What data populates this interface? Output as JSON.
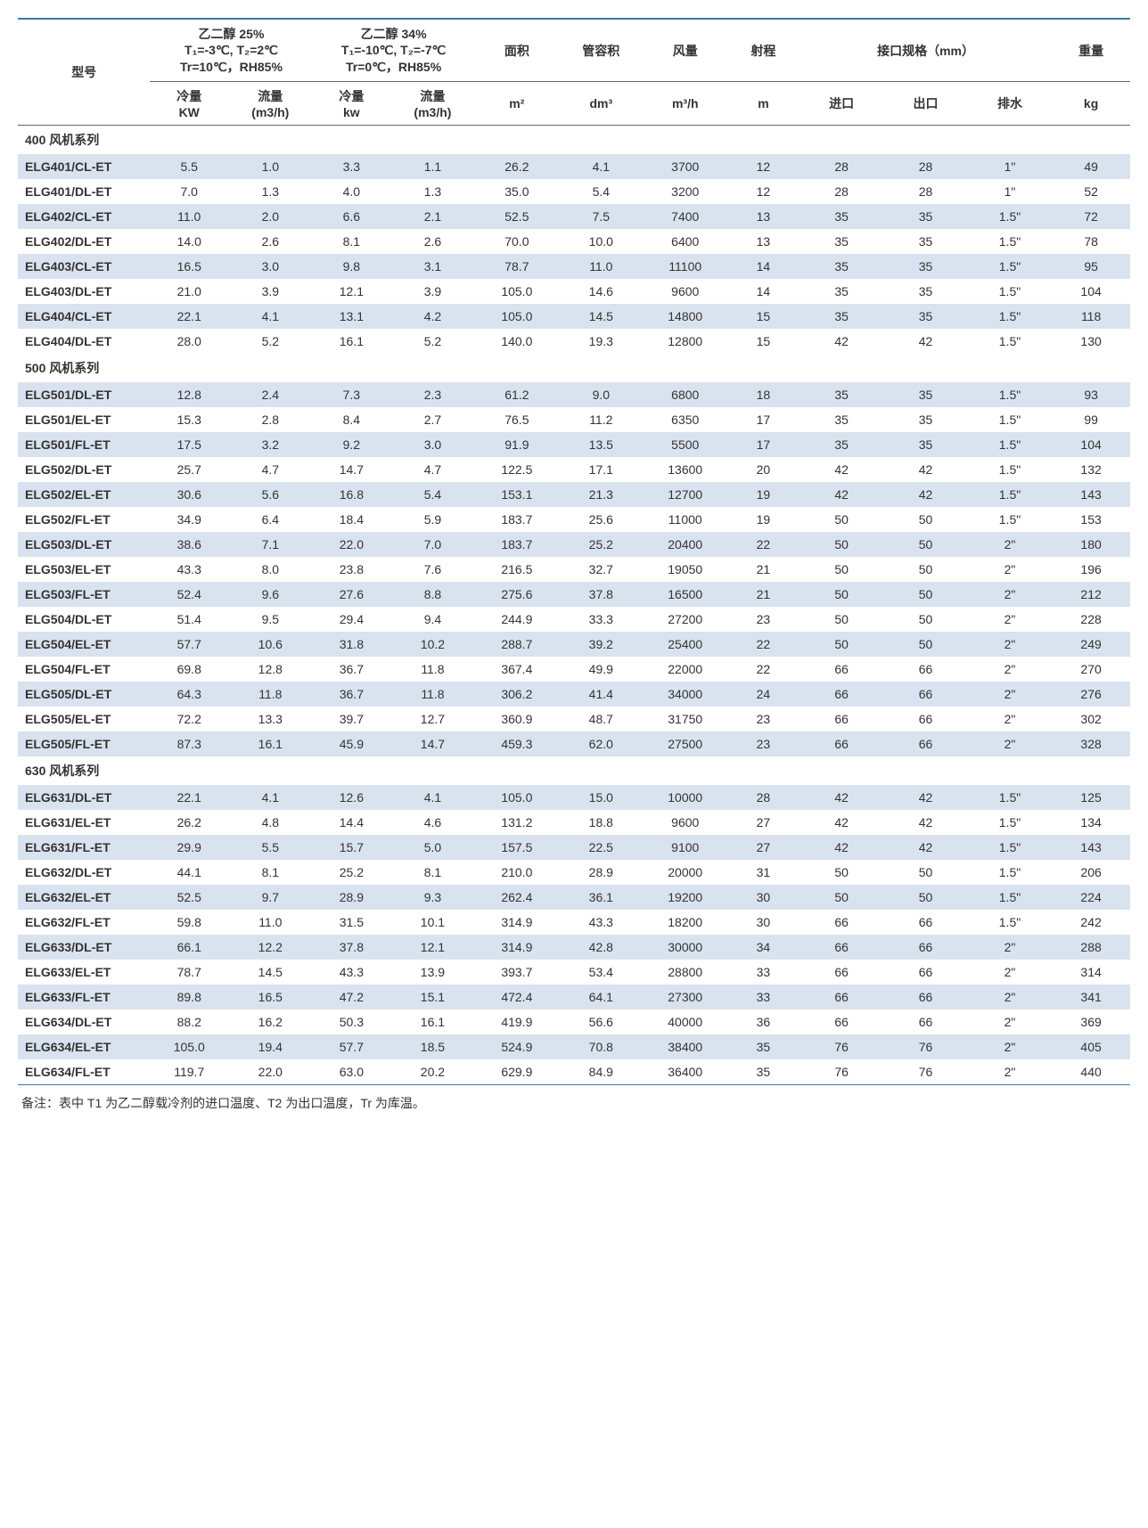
{
  "headers": {
    "model": "型号",
    "glycol25": {
      "title_line1": "乙二醇 25%",
      "title_line2": "T₁=-3℃, T₂=2℃",
      "title_line3": "Tr=10℃，RH85%",
      "cold_label": "冷量",
      "cold_unit": "KW",
      "flow_label": "流量",
      "flow_unit": "(m3/h)"
    },
    "glycol34": {
      "title_line1": "乙二醇 34%",
      "title_line2": "T₁=-10℃, T₂=-7℃",
      "title_line3": "Tr=0℃，RH85%",
      "cold_label": "冷量",
      "cold_unit": "kw",
      "flow_label": "流量",
      "flow_unit": "(m3/h)"
    },
    "area": {
      "label": "面积",
      "unit": "m²"
    },
    "pipe_vol": {
      "label": "管容积",
      "unit": "dm³"
    },
    "air_vol": {
      "label": "风量",
      "unit": "m³/h"
    },
    "range": {
      "label": "射程",
      "unit": "m"
    },
    "interface": {
      "label": "接口规格（mm）",
      "in": "进口",
      "out": "出口",
      "drain": "排水"
    },
    "weight": {
      "label": "重量",
      "unit": "kg"
    }
  },
  "sections": [
    {
      "title": "400 风机系列",
      "rows": [
        {
          "model": "ELG401/CL-ET",
          "c25_kw": "5.5",
          "c25_f": "1.0",
          "c34_kw": "3.3",
          "c34_f": "1.1",
          "area": "26.2",
          "pipe": "4.1",
          "air": "3700",
          "range": "12",
          "in": "28",
          "out": "28",
          "drain": "1\"",
          "wt": "49"
        },
        {
          "model": "ELG401/DL-ET",
          "c25_kw": "7.0",
          "c25_f": "1.3",
          "c34_kw": "4.0",
          "c34_f": "1.3",
          "area": "35.0",
          "pipe": "5.4",
          "air": "3200",
          "range": "12",
          "in": "28",
          "out": "28",
          "drain": "1\"",
          "wt": "52"
        },
        {
          "model": "ELG402/CL-ET",
          "c25_kw": "11.0",
          "c25_f": "2.0",
          "c34_kw": "6.6",
          "c34_f": "2.1",
          "area": "52.5",
          "pipe": "7.5",
          "air": "7400",
          "range": "13",
          "in": "35",
          "out": "35",
          "drain": "1.5\"",
          "wt": "72"
        },
        {
          "model": "ELG402/DL-ET",
          "c25_kw": "14.0",
          "c25_f": "2.6",
          "c34_kw": "8.1",
          "c34_f": "2.6",
          "area": "70.0",
          "pipe": "10.0",
          "air": "6400",
          "range": "13",
          "in": "35",
          "out": "35",
          "drain": "1.5\"",
          "wt": "78"
        },
        {
          "model": "ELG403/CL-ET",
          "c25_kw": "16.5",
          "c25_f": "3.0",
          "c34_kw": "9.8",
          "c34_f": "3.1",
          "area": "78.7",
          "pipe": "11.0",
          "air": "11100",
          "range": "14",
          "in": "35",
          "out": "35",
          "drain": "1.5\"",
          "wt": "95"
        },
        {
          "model": "ELG403/DL-ET",
          "c25_kw": "21.0",
          "c25_f": "3.9",
          "c34_kw": "12.1",
          "c34_f": "3.9",
          "area": "105.0",
          "pipe": "14.6",
          "air": "9600",
          "range": "14",
          "in": "35",
          "out": "35",
          "drain": "1.5\"",
          "wt": "104"
        },
        {
          "model": "ELG404/CL-ET",
          "c25_kw": "22.1",
          "c25_f": "4.1",
          "c34_kw": "13.1",
          "c34_f": "4.2",
          "area": "105.0",
          "pipe": "14.5",
          "air": "14800",
          "range": "15",
          "in": "35",
          "out": "35",
          "drain": "1.5\"",
          "wt": "118"
        },
        {
          "model": "ELG404/DL-ET",
          "c25_kw": "28.0",
          "c25_f": "5.2",
          "c34_kw": "16.1",
          "c34_f": "5.2",
          "area": "140.0",
          "pipe": "19.3",
          "air": "12800",
          "range": "15",
          "in": "42",
          "out": "42",
          "drain": "1.5\"",
          "wt": "130"
        }
      ]
    },
    {
      "title": "500 风机系列",
      "rows": [
        {
          "model": "ELG501/DL-ET",
          "c25_kw": "12.8",
          "c25_f": "2.4",
          "c34_kw": "7.3",
          "c34_f": "2.3",
          "area": "61.2",
          "pipe": "9.0",
          "air": "6800",
          "range": "18",
          "in": "35",
          "out": "35",
          "drain": "1.5\"",
          "wt": "93"
        },
        {
          "model": "ELG501/EL-ET",
          "c25_kw": "15.3",
          "c25_f": "2.8",
          "c34_kw": "8.4",
          "c34_f": "2.7",
          "area": "76.5",
          "pipe": "11.2",
          "air": "6350",
          "range": "17",
          "in": "35",
          "out": "35",
          "drain": "1.5\"",
          "wt": "99"
        },
        {
          "model": "ELG501/FL-ET",
          "c25_kw": "17.5",
          "c25_f": "3.2",
          "c34_kw": "9.2",
          "c34_f": "3.0",
          "area": "91.9",
          "pipe": "13.5",
          "air": "5500",
          "range": "17",
          "in": "35",
          "out": "35",
          "drain": "1.5\"",
          "wt": "104"
        },
        {
          "model": "ELG502/DL-ET",
          "c25_kw": "25.7",
          "c25_f": "4.7",
          "c34_kw": "14.7",
          "c34_f": "4.7",
          "area": "122.5",
          "pipe": "17.1",
          "air": "13600",
          "range": "20",
          "in": "42",
          "out": "42",
          "drain": "1.5\"",
          "wt": "132"
        },
        {
          "model": "ELG502/EL-ET",
          "c25_kw": "30.6",
          "c25_f": "5.6",
          "c34_kw": "16.8",
          "c34_f": "5.4",
          "area": "153.1",
          "pipe": "21.3",
          "air": "12700",
          "range": "19",
          "in": "42",
          "out": "42",
          "drain": "1.5\"",
          "wt": "143"
        },
        {
          "model": "ELG502/FL-ET",
          "c25_kw": "34.9",
          "c25_f": "6.4",
          "c34_kw": "18.4",
          "c34_f": "5.9",
          "area": "183.7",
          "pipe": "25.6",
          "air": "11000",
          "range": "19",
          "in": "50",
          "out": "50",
          "drain": "1.5\"",
          "wt": "153"
        },
        {
          "model": "ELG503/DL-ET",
          "c25_kw": "38.6",
          "c25_f": "7.1",
          "c34_kw": "22.0",
          "c34_f": "7.0",
          "area": "183.7",
          "pipe": "25.2",
          "air": "20400",
          "range": "22",
          "in": "50",
          "out": "50",
          "drain": "2\"",
          "wt": "180"
        },
        {
          "model": "ELG503/EL-ET",
          "c25_kw": "43.3",
          "c25_f": "8.0",
          "c34_kw": "23.8",
          "c34_f": "7.6",
          "area": "216.5",
          "pipe": "32.7",
          "air": "19050",
          "range": "21",
          "in": "50",
          "out": "50",
          "drain": "2\"",
          "wt": "196"
        },
        {
          "model": "ELG503/FL-ET",
          "c25_kw": "52.4",
          "c25_f": "9.6",
          "c34_kw": "27.6",
          "c34_f": "8.8",
          "area": "275.6",
          "pipe": "37.8",
          "air": "16500",
          "range": "21",
          "in": "50",
          "out": "50",
          "drain": "2\"",
          "wt": "212"
        },
        {
          "model": "ELG504/DL-ET",
          "c25_kw": "51.4",
          "c25_f": "9.5",
          "c34_kw": "29.4",
          "c34_f": "9.4",
          "area": "244.9",
          "pipe": "33.3",
          "air": "27200",
          "range": "23",
          "in": "50",
          "out": "50",
          "drain": "2\"",
          "wt": "228"
        },
        {
          "model": "ELG504/EL-ET",
          "c25_kw": "57.7",
          "c25_f": "10.6",
          "c34_kw": "31.8",
          "c34_f": "10.2",
          "area": "288.7",
          "pipe": "39.2",
          "air": "25400",
          "range": "22",
          "in": "50",
          "out": "50",
          "drain": "2\"",
          "wt": "249"
        },
        {
          "model": "ELG504/FL-ET",
          "c25_kw": "69.8",
          "c25_f": "12.8",
          "c34_kw": "36.7",
          "c34_f": "11.8",
          "area": "367.4",
          "pipe": "49.9",
          "air": "22000",
          "range": "22",
          "in": "66",
          "out": "66",
          "drain": "2\"",
          "wt": "270"
        },
        {
          "model": "ELG505/DL-ET",
          "c25_kw": "64.3",
          "c25_f": "11.8",
          "c34_kw": "36.7",
          "c34_f": "11.8",
          "area": "306.2",
          "pipe": "41.4",
          "air": "34000",
          "range": "24",
          "in": "66",
          "out": "66",
          "drain": "2\"",
          "wt": "276"
        },
        {
          "model": "ELG505/EL-ET",
          "c25_kw": "72.2",
          "c25_f": "13.3",
          "c34_kw": "39.7",
          "c34_f": "12.7",
          "area": "360.9",
          "pipe": "48.7",
          "air": "31750",
          "range": "23",
          "in": "66",
          "out": "66",
          "drain": "2\"",
          "wt": "302"
        },
        {
          "model": "ELG505/FL-ET",
          "c25_kw": "87.3",
          "c25_f": "16.1",
          "c34_kw": "45.9",
          "c34_f": "14.7",
          "area": "459.3",
          "pipe": "62.0",
          "air": "27500",
          "range": "23",
          "in": "66",
          "out": "66",
          "drain": "2\"",
          "wt": "328"
        }
      ]
    },
    {
      "title": "630 风机系列",
      "rows": [
        {
          "model": "ELG631/DL-ET",
          "c25_kw": "22.1",
          "c25_f": "4.1",
          "c34_kw": "12.6",
          "c34_f": "4.1",
          "area": "105.0",
          "pipe": "15.0",
          "air": "10000",
          "range": "28",
          "in": "42",
          "out": "42",
          "drain": "1.5\"",
          "wt": "125"
        },
        {
          "model": "ELG631/EL-ET",
          "c25_kw": "26.2",
          "c25_f": "4.8",
          "c34_kw": "14.4",
          "c34_f": "4.6",
          "area": "131.2",
          "pipe": "18.8",
          "air": "9600",
          "range": "27",
          "in": "42",
          "out": "42",
          "drain": "1.5\"",
          "wt": "134"
        },
        {
          "model": "ELG631/FL-ET",
          "c25_kw": "29.9",
          "c25_f": "5.5",
          "c34_kw": "15.7",
          "c34_f": "5.0",
          "area": "157.5",
          "pipe": "22.5",
          "air": "9100",
          "range": "27",
          "in": "42",
          "out": "42",
          "drain": "1.5\"",
          "wt": "143"
        },
        {
          "model": "ELG632/DL-ET",
          "c25_kw": "44.1",
          "c25_f": "8.1",
          "c34_kw": "25.2",
          "c34_f": "8.1",
          "area": "210.0",
          "pipe": "28.9",
          "air": "20000",
          "range": "31",
          "in": "50",
          "out": "50",
          "drain": "1.5\"",
          "wt": "206"
        },
        {
          "model": "ELG632/EL-ET",
          "c25_kw": "52.5",
          "c25_f": "9.7",
          "c34_kw": "28.9",
          "c34_f": "9.3",
          "area": "262.4",
          "pipe": "36.1",
          "air": "19200",
          "range": "30",
          "in": "50",
          "out": "50",
          "drain": "1.5\"",
          "wt": "224"
        },
        {
          "model": "ELG632/FL-ET",
          "c25_kw": "59.8",
          "c25_f": "11.0",
          "c34_kw": "31.5",
          "c34_f": "10.1",
          "area": "314.9",
          "pipe": "43.3",
          "air": "18200",
          "range": "30",
          "in": "66",
          "out": "66",
          "drain": "1.5\"",
          "wt": "242"
        },
        {
          "model": "ELG633/DL-ET",
          "c25_kw": "66.1",
          "c25_f": "12.2",
          "c34_kw": "37.8",
          "c34_f": "12.1",
          "area": "314.9",
          "pipe": "42.8",
          "air": "30000",
          "range": "34",
          "in": "66",
          "out": "66",
          "drain": "2\"",
          "wt": "288"
        },
        {
          "model": "ELG633/EL-ET",
          "c25_kw": "78.7",
          "c25_f": "14.5",
          "c34_kw": "43.3",
          "c34_f": "13.9",
          "area": "393.7",
          "pipe": "53.4",
          "air": "28800",
          "range": "33",
          "in": "66",
          "out": "66",
          "drain": "2\"",
          "wt": "314"
        },
        {
          "model": "ELG633/FL-ET",
          "c25_kw": "89.8",
          "c25_f": "16.5",
          "c34_kw": "47.2",
          "c34_f": "15.1",
          "area": "472.4",
          "pipe": "64.1",
          "air": "27300",
          "range": "33",
          "in": "66",
          "out": "66",
          "drain": "2\"",
          "wt": "341"
        },
        {
          "model": "ELG634/DL-ET",
          "c25_kw": "88.2",
          "c25_f": "16.2",
          "c34_kw": "50.3",
          "c34_f": "16.1",
          "area": "419.9",
          "pipe": "56.6",
          "air": "40000",
          "range": "36",
          "in": "66",
          "out": "66",
          "drain": "2\"",
          "wt": "369"
        },
        {
          "model": "ELG634/EL-ET",
          "c25_kw": "105.0",
          "c25_f": "19.4",
          "c34_kw": "57.7",
          "c34_f": "18.5",
          "area": "524.9",
          "pipe": "70.8",
          "air": "38400",
          "range": "35",
          "in": "76",
          "out": "76",
          "drain": "2\"",
          "wt": "405"
        },
        {
          "model": "ELG634/FL-ET",
          "c25_kw": "119.7",
          "c25_f": "22.0",
          "c34_kw": "63.0",
          "c34_f": "20.2",
          "area": "629.9",
          "pipe": "84.9",
          "air": "36400",
          "range": "35",
          "in": "76",
          "out": "76",
          "drain": "2\"",
          "wt": "440"
        }
      ]
    }
  ],
  "footnote": "备注：表中 T1 为乙二醇载冷剂的进口温度、T2 为出口温度，Tr 为库温。"
}
